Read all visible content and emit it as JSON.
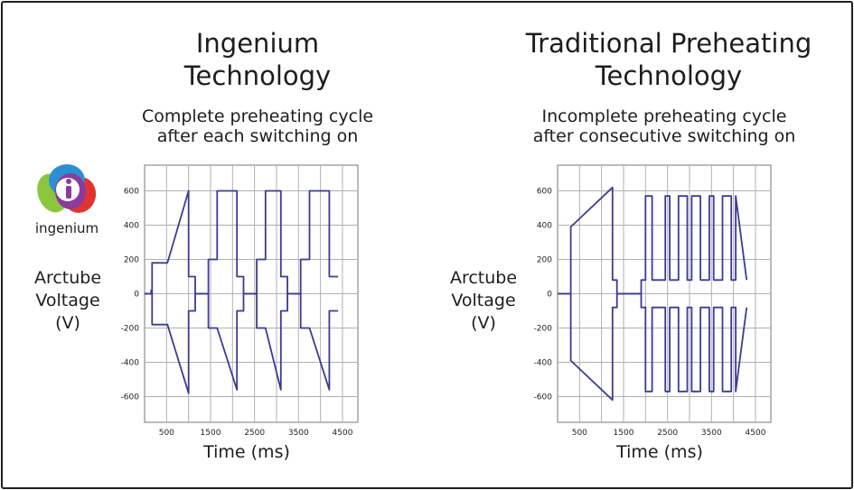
{
  "logo": {
    "label": "ingenium"
  },
  "panels": {
    "left": {
      "title_line1": "Ingenium",
      "title_line2": "Technology",
      "subtitle_line1": "Complete preheating cycle",
      "subtitle_line2": "after each switching on",
      "ylabel_line1": "Arctube",
      "ylabel_line2": "Voltage",
      "ylabel_line3": "(V)",
      "xlabel": "Time (ms)"
    },
    "right": {
      "title_line1": "Traditional Preheating",
      "title_line2": "Technology",
      "subtitle_line1": "Incomplete preheating cycle",
      "subtitle_line2": "after consecutive switching on",
      "ylabel_line1": "Arctube",
      "ylabel_line2": "Voltage",
      "ylabel_line3": "(V)",
      "xlabel": "Time (ms)"
    }
  },
  "colors": {
    "trace": "#3d3a94",
    "grid": "#b0b0b0",
    "text": "#1d1d1d"
  },
  "chart_data": [
    {
      "type": "line",
      "xlabel": "Time (ms)",
      "ylabel": "Arctube Voltage (V)",
      "xlim": [
        0,
        4850
      ],
      "ylim": [
        -750,
        750
      ],
      "x_ticks": [
        500,
        1500,
        2500,
        3500,
        4500
      ],
      "y_ticks": [
        600,
        400,
        200,
        0,
        -200,
        -400,
        -600
      ],
      "grid": true,
      "series": [
        {
          "x": [
            0,
            150,
            150,
            150,
            150,
            150,
            150,
            150,
            150,
            150,
            150,
            150,
            150,
            150,
            150,
            170,
            170,
            310,
            310,
            520,
            520,
            1000,
            1000,
            1150,
            1150,
            1450,
            1450,
            1650,
            1650,
            2100,
            2100,
            2250,
            2250,
            2550,
            2550,
            2750,
            2750,
            3100,
            3100,
            3250,
            3250,
            3550,
            3550,
            3750,
            3750,
            4200,
            4200,
            4400
          ],
          "y": [
            0,
            0,
            20,
            0,
            20,
            0,
            20,
            0,
            20,
            0,
            20,
            0,
            20,
            0,
            20,
            0,
            180,
            180,
            180,
            180,
            180,
            600,
            100,
            100,
            0,
            0,
            200,
            200,
            600,
            600,
            100,
            100,
            0,
            0,
            200,
            200,
            600,
            600,
            100,
            100,
            0,
            0,
            200,
            200,
            600,
            600,
            100,
            100
          ]
        },
        {
          "x": [
            0,
            150,
            170,
            170,
            310,
            520,
            1000,
            1000,
            1150,
            1150,
            1450,
            1450,
            1650,
            2100,
            2100,
            2250,
            2250,
            2550,
            2550,
            2750,
            3100,
            3100,
            3250,
            3250,
            3550,
            3550,
            3750,
            4200,
            4200,
            4400
          ],
          "y": [
            0,
            0,
            0,
            -180,
            -180,
            -180,
            -580,
            -100,
            -100,
            0,
            0,
            -200,
            -200,
            -560,
            -100,
            -100,
            0,
            0,
            -200,
            -200,
            -560,
            -100,
            -100,
            0,
            0,
            -200,
            -200,
            -560,
            -100,
            -100
          ]
        }
      ]
    },
    {
      "type": "line",
      "xlabel": "Time (ms)",
      "ylabel": "Arctube Voltage (V)",
      "xlim": [
        0,
        4850
      ],
      "ylim": [
        -750,
        750
      ],
      "x_ticks": [
        500,
        1500,
        2500,
        3500,
        4500
      ],
      "y_ticks": [
        600,
        400,
        200,
        0,
        -200,
        -400,
        -600
      ],
      "grid": true,
      "series": [
        {
          "x": [
            0,
            300,
            300,
            1250,
            1250,
            1350,
            1350,
            1900,
            1900,
            2000,
            2000,
            2150,
            2150,
            2450,
            2450,
            2550,
            2550,
            2750,
            2750,
            2950,
            2950,
            3050,
            3050,
            3250,
            3250,
            3450,
            3450,
            3550,
            3550,
            3750,
            3750,
            3950,
            3950,
            4050,
            4050,
            4300
          ],
          "y": [
            0,
            0,
            390,
            620,
            80,
            80,
            0,
            0,
            80,
            80,
            570,
            570,
            80,
            80,
            570,
            570,
            80,
            80,
            570,
            570,
            80,
            80,
            570,
            570,
            80,
            80,
            570,
            570,
            80,
            80,
            570,
            570,
            80,
            80,
            570,
            80
          ]
        },
        {
          "x": [
            0,
            300,
            300,
            1250,
            1250,
            1350,
            1350,
            1900,
            1900,
            2000,
            2000,
            2150,
            2150,
            2450,
            2450,
            2550,
            2550,
            2750,
            2750,
            2950,
            2950,
            3050,
            3050,
            3250,
            3250,
            3450,
            3450,
            3550,
            3550,
            3750,
            3750,
            3950,
            3950,
            4050,
            4050,
            4300
          ],
          "y": [
            0,
            0,
            -390,
            -620,
            -80,
            -80,
            0,
            0,
            -80,
            -80,
            -570,
            -570,
            -80,
            -80,
            -570,
            -570,
            -80,
            -80,
            -570,
            -570,
            -80,
            -80,
            -570,
            -570,
            -80,
            -80,
            -570,
            -570,
            -80,
            -80,
            -570,
            -570,
            -80,
            -80,
            -570,
            -80
          ]
        }
      ]
    }
  ]
}
